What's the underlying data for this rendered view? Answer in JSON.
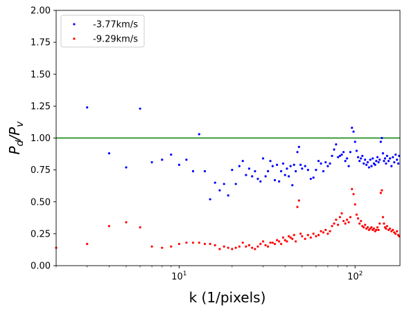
{
  "chart_data": {
    "type": "scatter",
    "xlabel": "k (1/pixels)",
    "ylabel": "P_d/P_v",
    "xscale": "log",
    "xlim": [
      2,
      180
    ],
    "ylim": [
      0,
      2
    ],
    "grid": false,
    "legend_position": "top-left",
    "x_tick_labels": [
      {
        "value": 10,
        "base": "10",
        "exp": "1"
      },
      {
        "value": 100,
        "base": "10",
        "exp": "2"
      }
    ],
    "y_ticks": [
      "0.00",
      "0.25",
      "0.50",
      "0.75",
      "1.00",
      "1.25",
      "1.50",
      "1.75",
      "2.00"
    ],
    "reference_line": {
      "y": 1.0,
      "color": "#008000"
    },
    "series": [
      {
        "name": "-3.77km/s",
        "color": "#0000ff",
        "points": [
          [
            3,
            1.24
          ],
          [
            4,
            0.88
          ],
          [
            5,
            0.77
          ],
          [
            6,
            1.23
          ],
          [
            7,
            0.81
          ],
          [
            8,
            0.83
          ],
          [
            9,
            0.87
          ],
          [
            10,
            0.79
          ],
          [
            11,
            0.83
          ],
          [
            12,
            0.74
          ],
          [
            13,
            1.03
          ],
          [
            14,
            0.74
          ],
          [
            15,
            0.52
          ],
          [
            16,
            0.65
          ],
          [
            17,
            0.59
          ],
          [
            18,
            0.64
          ],
          [
            19,
            0.55
          ],
          [
            20,
            0.75
          ],
          [
            21,
            0.64
          ],
          [
            22,
            0.78
          ],
          [
            23,
            0.82
          ],
          [
            24,
            0.71
          ],
          [
            25,
            0.76
          ],
          [
            26,
            0.7
          ],
          [
            27,
            0.74
          ],
          [
            28,
            0.68
          ],
          [
            29,
            0.66
          ],
          [
            30,
            0.84
          ],
          [
            31,
            0.7
          ],
          [
            32,
            0.74
          ],
          [
            33,
            0.82
          ],
          [
            34,
            0.78
          ],
          [
            35,
            0.67
          ],
          [
            36,
            0.79
          ],
          [
            37,
            0.66
          ],
          [
            38,
            0.74
          ],
          [
            39,
            0.8
          ],
          [
            40,
            0.71
          ],
          [
            41,
            0.76
          ],
          [
            42,
            0.7
          ],
          [
            43,
            0.78
          ],
          [
            44,
            0.63
          ],
          [
            45,
            0.79
          ],
          [
            46,
            0.74
          ],
          [
            47,
            0.89
          ],
          [
            48,
            0.93
          ],
          [
            49,
            0.79
          ],
          [
            50,
            0.76
          ],
          [
            52,
            0.78
          ],
          [
            54,
            0.75
          ],
          [
            56,
            0.68
          ],
          [
            58,
            0.69
          ],
          [
            60,
            0.75
          ],
          [
            62,
            0.82
          ],
          [
            64,
            0.8
          ],
          [
            66,
            0.74
          ],
          [
            68,
            0.81
          ],
          [
            70,
            0.78
          ],
          [
            72,
            0.8
          ],
          [
            74,
            0.86
          ],
          [
            76,
            0.91
          ],
          [
            78,
            0.95
          ],
          [
            80,
            0.85
          ],
          [
            82,
            0.86
          ],
          [
            84,
            0.87
          ],
          [
            86,
            0.89
          ],
          [
            88,
            0.82
          ],
          [
            90,
            0.84
          ],
          [
            92,
            0.78
          ],
          [
            94,
            0.89
          ],
          [
            96,
            1.08
          ],
          [
            98,
            1.05
          ],
          [
            100,
            0.97
          ],
          [
            102,
            0.9
          ],
          [
            104,
            0.85
          ],
          [
            106,
            0.82
          ],
          [
            108,
            0.84
          ],
          [
            110,
            0.86
          ],
          [
            112,
            0.8
          ],
          [
            114,
            0.83
          ],
          [
            116,
            0.79
          ],
          [
            118,
            0.81
          ],
          [
            120,
            0.77
          ],
          [
            122,
            0.83
          ],
          [
            124,
            0.78
          ],
          [
            126,
            0.84
          ],
          [
            128,
            0.8
          ],
          [
            130,
            0.79
          ],
          [
            132,
            0.82
          ],
          [
            134,
            0.85
          ],
          [
            136,
            0.81
          ],
          [
            138,
            0.83
          ],
          [
            140,
            0.97
          ],
          [
            142,
            1.0
          ],
          [
            144,
            0.88
          ],
          [
            146,
            0.82
          ],
          [
            148,
            0.84
          ],
          [
            150,
            0.8
          ],
          [
            152,
            0.86
          ],
          [
            155,
            0.82
          ],
          [
            158,
            0.84
          ],
          [
            161,
            0.78
          ],
          [
            164,
            0.85
          ],
          [
            167,
            0.81
          ],
          [
            170,
            0.87
          ],
          [
            173,
            0.83
          ],
          [
            176,
            0.8
          ],
          [
            178,
            0.86
          ]
        ]
      },
      {
        "name": "-9.29km/s",
        "color": "#ff0000",
        "points": [
          [
            2,
            0.14
          ],
          [
            3,
            0.17
          ],
          [
            4,
            0.31
          ],
          [
            5,
            0.34
          ],
          [
            6,
            0.3
          ],
          [
            7,
            0.15
          ],
          [
            8,
            0.14
          ],
          [
            9,
            0.15
          ],
          [
            10,
            0.17
          ],
          [
            11,
            0.18
          ],
          [
            12,
            0.18
          ],
          [
            13,
            0.18
          ],
          [
            14,
            0.17
          ],
          [
            15,
            0.17
          ],
          [
            16,
            0.16
          ],
          [
            17,
            0.13
          ],
          [
            18,
            0.15
          ],
          [
            19,
            0.14
          ],
          [
            20,
            0.13
          ],
          [
            21,
            0.14
          ],
          [
            22,
            0.15
          ],
          [
            23,
            0.18
          ],
          [
            24,
            0.15
          ],
          [
            25,
            0.16
          ],
          [
            26,
            0.14
          ],
          [
            27,
            0.13
          ],
          [
            28,
            0.15
          ],
          [
            29,
            0.17
          ],
          [
            30,
            0.19
          ],
          [
            31,
            0.16
          ],
          [
            32,
            0.15
          ],
          [
            33,
            0.18
          ],
          [
            34,
            0.18
          ],
          [
            35,
            0.17
          ],
          [
            36,
            0.2
          ],
          [
            37,
            0.19
          ],
          [
            38,
            0.17
          ],
          [
            39,
            0.22
          ],
          [
            40,
            0.2
          ],
          [
            41,
            0.19
          ],
          [
            42,
            0.23
          ],
          [
            43,
            0.22
          ],
          [
            44,
            0.21
          ],
          [
            45,
            0.24
          ],
          [
            46,
            0.19
          ],
          [
            47,
            0.46
          ],
          [
            48,
            0.51
          ],
          [
            49,
            0.25
          ],
          [
            50,
            0.23
          ],
          [
            52,
            0.21
          ],
          [
            54,
            0.24
          ],
          [
            56,
            0.22
          ],
          [
            58,
            0.25
          ],
          [
            60,
            0.23
          ],
          [
            62,
            0.24
          ],
          [
            64,
            0.27
          ],
          [
            66,
            0.26
          ],
          [
            68,
            0.28
          ],
          [
            70,
            0.25
          ],
          [
            72,
            0.27
          ],
          [
            74,
            0.31
          ],
          [
            76,
            0.33
          ],
          [
            78,
            0.36
          ],
          [
            80,
            0.32
          ],
          [
            82,
            0.38
          ],
          [
            84,
            0.41
          ],
          [
            86,
            0.35
          ],
          [
            88,
            0.33
          ],
          [
            90,
            0.36
          ],
          [
            92,
            0.34
          ],
          [
            94,
            0.38
          ],
          [
            96,
            0.6
          ],
          [
            98,
            0.56
          ],
          [
            100,
            0.48
          ],
          [
            102,
            0.4
          ],
          [
            104,
            0.37
          ],
          [
            106,
            0.33
          ],
          [
            108,
            0.35
          ],
          [
            110,
            0.31
          ],
          [
            112,
            0.3
          ],
          [
            114,
            0.32
          ],
          [
            116,
            0.29
          ],
          [
            118,
            0.3
          ],
          [
            120,
            0.28
          ],
          [
            122,
            0.29
          ],
          [
            124,
            0.3
          ],
          [
            126,
            0.28
          ],
          [
            128,
            0.29
          ],
          [
            130,
            0.27
          ],
          [
            132,
            0.28
          ],
          [
            134,
            0.3
          ],
          [
            136,
            0.28
          ],
          [
            138,
            0.33
          ],
          [
            140,
            0.57
          ],
          [
            142,
            0.59
          ],
          [
            144,
            0.38
          ],
          [
            146,
            0.33
          ],
          [
            148,
            0.3
          ],
          [
            150,
            0.29
          ],
          [
            152,
            0.31
          ],
          [
            155,
            0.28
          ],
          [
            158,
            0.29
          ],
          [
            161,
            0.27
          ],
          [
            164,
            0.28
          ],
          [
            167,
            0.26
          ],
          [
            170,
            0.25
          ],
          [
            173,
            0.27
          ],
          [
            176,
            0.24
          ],
          [
            178,
            0.23
          ]
        ]
      }
    ]
  }
}
